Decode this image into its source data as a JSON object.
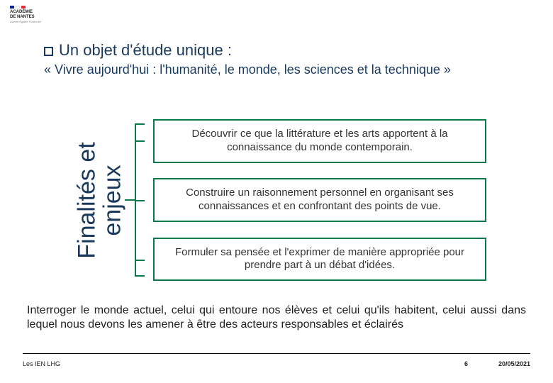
{
  "logo": {
    "flag_colors": [
      "#002395",
      "#ffffff",
      "#ed2939"
    ],
    "line1": "ACADÉMIE",
    "line2": "DE NANTES",
    "motto": "Liberté Égalité Fraternité"
  },
  "heading": "Un objet d'étude unique :",
  "subheading": "« Vivre aujourd'hui : l'humanité, le monde, les sciences et la technique »",
  "rotated_label_outer": "Finalités et",
  "rotated_label_inner": "enjeux",
  "boxes": [
    "Découvrir ce que la littérature et les arts apportent à la connaissance du monde contemporain.",
    "Construire un raisonnement personnel en organisant ses connaissances et en confrontant des points de vue.",
    "Formuler sa pensée et l'exprimer de manière appropriée pour prendre part à un débat d'idées."
  ],
  "bottom_paragraph": "Interroger le monde actuel, celui qui entoure nos élèves et celui qu'ils habitent, celui aussi dans lequel nous devons les amener à être des acteurs responsables et éclairés",
  "footer": {
    "left": "Les IEN LHG",
    "page": "6",
    "date": "20/05/2021"
  },
  "colors": {
    "heading": "#1a3a5c",
    "accent": "#0b7a4a",
    "text": "#333333"
  }
}
